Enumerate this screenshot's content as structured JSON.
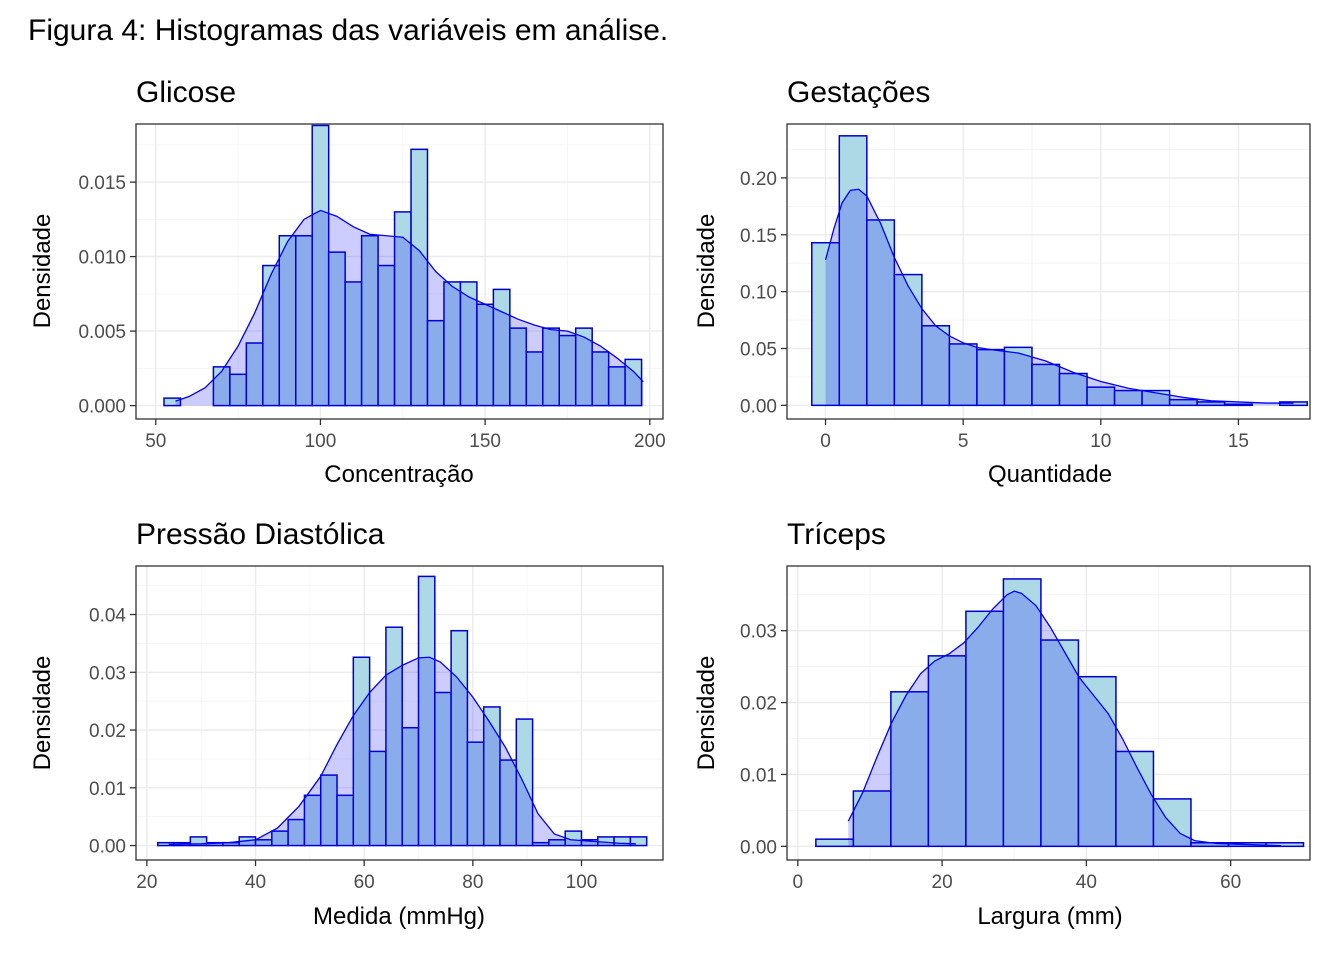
{
  "figure": {
    "title": "Figura 4: Histogramas das variáveis em análise."
  },
  "colors": {
    "hist_fill": "#ADD8E6",
    "hist_stroke": "#0000CD",
    "density_fill": "#0000FF",
    "density_stroke": "#0000FF",
    "grid": "#EBEBEB",
    "frame": "#333333"
  },
  "chart_data": [
    {
      "type": "bar",
      "id": "glicose",
      "title": "Glicose",
      "xlabel": "Concentração",
      "ylabel": "Densidade",
      "xlim": [
        44,
        204
      ],
      "ylim": [
        -0.0009,
        0.0189
      ],
      "xticks": [
        50,
        100,
        150,
        200
      ],
      "xtick_labels": [
        "50",
        "100",
        "150",
        "200"
      ],
      "yticks": [
        0,
        0.005,
        0.01,
        0.015
      ],
      "ytick_labels": [
        "0.000",
        "0.005",
        "0.010",
        "0.015"
      ],
      "bin_width": 5,
      "bins_start": [
        52.5,
        57.5,
        62.5,
        67.5,
        72.5,
        77.5,
        82.5,
        87.5,
        92.5,
        97.5,
        102.5,
        107.5,
        112.5,
        117.5,
        122.5,
        127.5,
        132.5,
        137.5,
        142.5,
        147.5,
        152.5,
        157.5,
        162.5,
        167.5,
        172.5,
        177.5,
        182.5,
        187.5,
        192.5
      ],
      "values": [
        0.0005,
        0,
        0,
        0.0026,
        0.0021,
        0.0042,
        0.0094,
        0.0114,
        0.0114,
        0.0188,
        0.0103,
        0.0083,
        0.0114,
        0.0094,
        0.013,
        0.0172,
        0.0057,
        0.0083,
        0.0083,
        0.0068,
        0.0078,
        0.0052,
        0.0036,
        0.0052,
        0.0047,
        0.0052,
        0.0036,
        0.0026,
        0.0031
      ],
      "density_x": [
        56,
        60,
        65,
        70,
        75,
        80,
        85,
        90,
        95,
        100,
        105,
        110,
        115,
        120,
        125,
        130,
        135,
        140,
        145,
        150,
        155,
        160,
        165,
        170,
        175,
        180,
        185,
        190,
        195,
        198
      ],
      "density_y": [
        0.0003,
        0.0006,
        0.0012,
        0.0023,
        0.004,
        0.0062,
        0.0088,
        0.011,
        0.0125,
        0.0131,
        0.0127,
        0.012,
        0.0115,
        0.0114,
        0.0113,
        0.0104,
        0.009,
        0.008,
        0.0073,
        0.0068,
        0.0063,
        0.0058,
        0.0054,
        0.0051,
        0.005,
        0.0046,
        0.004,
        0.0032,
        0.0023,
        0.0016
      ]
    },
    {
      "type": "bar",
      "id": "gestacoes",
      "title": "Gestações",
      "xlabel": "Quantidade",
      "ylabel": "Densidade",
      "xlim": [
        -1.4,
        17.6
      ],
      "ylim": [
        -0.012,
        0.2474
      ],
      "xticks": [
        0,
        5,
        10,
        15
      ],
      "xtick_labels": [
        "0",
        "5",
        "10",
        "15"
      ],
      "yticks": [
        0,
        0.05,
        0.1,
        0.15,
        0.2
      ],
      "ytick_labels": [
        "0.00",
        "0.05",
        "0.10",
        "0.15",
        "0.20"
      ],
      "bin_width": 1,
      "bins_start": [
        -0.5,
        0.5,
        1.5,
        2.5,
        3.5,
        4.5,
        5.5,
        6.5,
        7.5,
        8.5,
        9.5,
        10.5,
        11.5,
        12.5,
        13.5,
        14.5,
        15.5,
        16.5
      ],
      "values": [
        0.143,
        0.237,
        0.163,
        0.115,
        0.07,
        0.054,
        0.049,
        0.051,
        0.036,
        0.028,
        0.016,
        0.013,
        0.013,
        0.005,
        0.003,
        0.001,
        0.0,
        0.003
      ],
      "density_x": [
        0,
        0.3,
        0.6,
        0.9,
        1.2,
        1.5,
        2,
        2.5,
        3,
        3.5,
        4,
        4.5,
        5,
        5.5,
        6,
        7,
        8,
        9,
        10,
        11,
        12,
        13,
        14,
        15,
        16,
        17
      ],
      "density_y": [
        0.128,
        0.155,
        0.178,
        0.189,
        0.19,
        0.184,
        0.16,
        0.13,
        0.105,
        0.085,
        0.07,
        0.061,
        0.055,
        0.051,
        0.049,
        0.046,
        0.039,
        0.029,
        0.021,
        0.015,
        0.011,
        0.007,
        0.004,
        0.003,
        0.002,
        0.002
      ]
    },
    {
      "type": "bar",
      "id": "pressao",
      "title": "Pressão Diastólica",
      "xlabel": "Medida (mmHg)",
      "ylabel": "Densidade",
      "xlim": [
        18,
        115
      ],
      "ylim": [
        -0.0025,
        0.0484
      ],
      "xticks": [
        20,
        40,
        60,
        80,
        100
      ],
      "xtick_labels": [
        "20",
        "40",
        "60",
        "80",
        "100"
      ],
      "yticks": [
        0,
        0.01,
        0.02,
        0.03,
        0.04
      ],
      "ytick_labels": [
        "0.00",
        "0.01",
        "0.02",
        "0.03",
        "0.04"
      ],
      "bin_width": 3,
      "bins_start": [
        22,
        25,
        28,
        31,
        34,
        37,
        40,
        43,
        46,
        49,
        52,
        55,
        58,
        61,
        64,
        67,
        70,
        73,
        76,
        79,
        82,
        85,
        88,
        91,
        94,
        97,
        100,
        103,
        106,
        109
      ],
      "values": [
        0.0005,
        0.0005,
        0.0015,
        0.0005,
        0.0005,
        0.0015,
        0.001,
        0.0025,
        0.0045,
        0.0087,
        0.0122,
        0.0087,
        0.0326,
        0.0163,
        0.0378,
        0.0204,
        0.0466,
        0.0265,
        0.0372,
        0.0179,
        0.024,
        0.0148,
        0.0219,
        0.0005,
        0.001,
        0.0025,
        0.001,
        0.0015,
        0.0015,
        0.0015
      ],
      "density_x": [
        24,
        30,
        35,
        40,
        44,
        48,
        52,
        55,
        58,
        61,
        64,
        67,
        70,
        72,
        74,
        77,
        80,
        83,
        86,
        89,
        92,
        95,
        98,
        101,
        104,
        107,
        110
      ],
      "density_y": [
        0.0002,
        0.0003,
        0.0005,
        0.001,
        0.003,
        0.0068,
        0.012,
        0.0175,
        0.0225,
        0.0265,
        0.0295,
        0.0312,
        0.0325,
        0.0326,
        0.0318,
        0.0292,
        0.0257,
        0.0215,
        0.017,
        0.0115,
        0.0055,
        0.002,
        0.001,
        0.0008,
        0.0006,
        0.0004,
        0.0003
      ]
    },
    {
      "type": "bar",
      "id": "triceps",
      "title": "Tríceps",
      "xlabel": "Largura (mm)",
      "ylabel": "Densidade",
      "xlim": [
        -1.5,
        71
      ],
      "ylim": [
        -0.0019,
        0.039
      ],
      "xticks": [
        0,
        20,
        40,
        60
      ],
      "xtick_labels": [
        "0",
        "20",
        "40",
        "60"
      ],
      "yticks": [
        0,
        0.01,
        0.02,
        0.03
      ],
      "ytick_labels": [
        "0.00",
        "0.01",
        "0.02",
        "0.03"
      ],
      "bin_width": 5.2,
      "bins_start": [
        2.5,
        7.7,
        12.9,
        18.1,
        23.3,
        28.5,
        33.7,
        38.9,
        44.1,
        49.3,
        54.5,
        59.7,
        64.9
      ],
      "values": [
        0.001,
        0.0077,
        0.0215,
        0.0265,
        0.0327,
        0.0372,
        0.0287,
        0.0236,
        0.0132,
        0.0066,
        0.0005,
        0.0005,
        0.0005
      ],
      "density_x": [
        7,
        9,
        11,
        13,
        15,
        17,
        19,
        21,
        23,
        25,
        27,
        29,
        30,
        31,
        33,
        35,
        37,
        39,
        41,
        43,
        45,
        47,
        49,
        51,
        53,
        55,
        58,
        61,
        64,
        67
      ],
      "density_y": [
        0.0035,
        0.0075,
        0.0125,
        0.0172,
        0.021,
        0.024,
        0.0258,
        0.0268,
        0.0283,
        0.0305,
        0.033,
        0.035,
        0.0355,
        0.0352,
        0.0335,
        0.0305,
        0.027,
        0.0235,
        0.021,
        0.0185,
        0.015,
        0.011,
        0.0072,
        0.004,
        0.0018,
        0.0008,
        0.0004,
        0.0003,
        0.0002,
        0.0001
      ]
    }
  ]
}
